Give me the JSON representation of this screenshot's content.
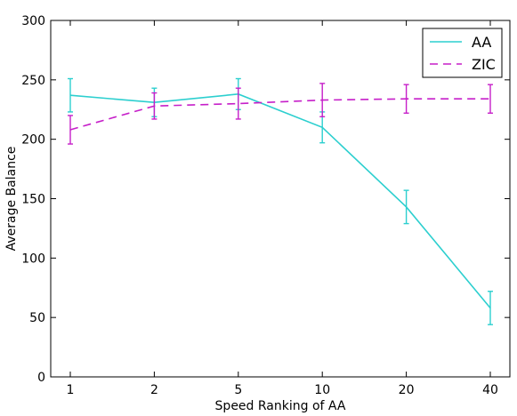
{
  "chart_data": {
    "type": "line",
    "title": "",
    "xlabel": "Speed Ranking of AA",
    "ylabel": "Average Balance",
    "categories": [
      "1",
      "2",
      "5",
      "10",
      "20",
      "40"
    ],
    "ylim": [
      0,
      300
    ],
    "yticks": [
      0,
      50,
      100,
      150,
      200,
      250,
      300
    ],
    "grid": false,
    "legend_position": "top-right",
    "series": [
      {
        "name": "AA",
        "color": "#2ccfcf",
        "style": "solid",
        "values": [
          237,
          231,
          238,
          210,
          143,
          58
        ],
        "errors": [
          14,
          12,
          13,
          13,
          14,
          14
        ]
      },
      {
        "name": "ZIC",
        "color": "#c61fc9",
        "style": "dashed",
        "values": [
          208,
          228,
          230,
          233,
          234,
          234
        ],
        "errors": [
          12,
          11,
          13,
          14,
          12,
          12
        ]
      }
    ]
  }
}
